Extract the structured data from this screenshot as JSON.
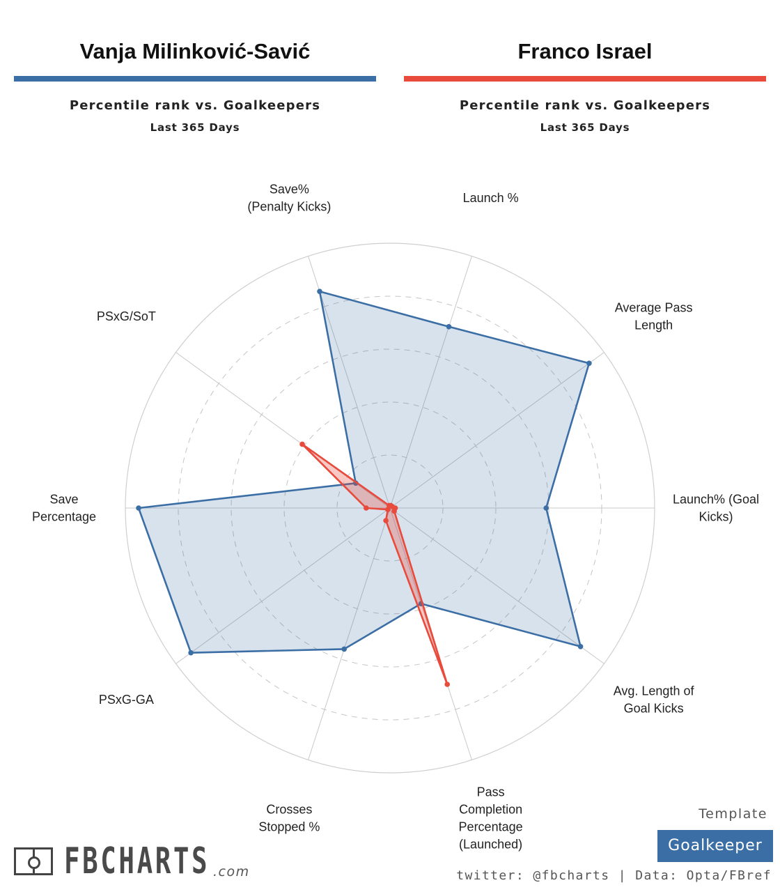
{
  "header": {
    "players": [
      {
        "name": "Vanja Milinković-Savić",
        "subtitle": "Percentile rank vs. Goalkeepers",
        "period": "Last 365 Days",
        "color": "#3b6ea5"
      },
      {
        "name": "Franco Israel",
        "subtitle": "Percentile rank vs. Goalkeepers",
        "period": "Last 365 Days",
        "color": "#e84a3c"
      }
    ]
  },
  "chart_data": {
    "type": "radar",
    "range": [
      0,
      100
    ],
    "rings": 5,
    "grid": true,
    "axes": [
      {
        "lines": [
          "Launch %"
        ]
      },
      {
        "lines": [
          "Average Pass",
          "Length"
        ]
      },
      {
        "lines": [
          "Launch% (Goal",
          "Kicks)"
        ]
      },
      {
        "lines": [
          "Avg. Length of",
          "Goal Kicks"
        ]
      },
      {
        "lines": [
          "Pass",
          "Completion",
          "Percentage",
          "(Launched)"
        ]
      },
      {
        "lines": [
          "Crosses",
          "Stopped %"
        ]
      },
      {
        "lines": [
          "PSxG-GA"
        ]
      },
      {
        "lines": [
          "Save",
          "Percentage"
        ]
      },
      {
        "lines": [
          "PSxG/SoT"
        ]
      },
      {
        "lines": [
          "Save%",
          "(Penalty Kicks)"
        ]
      }
    ],
    "series": [
      {
        "name": "Vanja Milinković-Savić",
        "color": "#3b6ea5",
        "fill": "rgba(59,110,165,0.2)",
        "values": [
          72,
          93,
          59,
          89,
          38,
          56,
          93,
          95,
          16,
          86
        ]
      },
      {
        "name": "Franco Israel",
        "color": "#e84a3c",
        "fill": "rgba(232,74,60,0.3)",
        "values": [
          1,
          1,
          2,
          2,
          70,
          5,
          1,
          9,
          41,
          1
        ]
      }
    ]
  },
  "footer": {
    "logo_text": "FBCHARTS",
    "logo_suffix": ".com",
    "template_label": "Template",
    "template_value": "Goalkeeper",
    "credits": "twitter: @fbcharts | Data: Opta/FBref"
  }
}
